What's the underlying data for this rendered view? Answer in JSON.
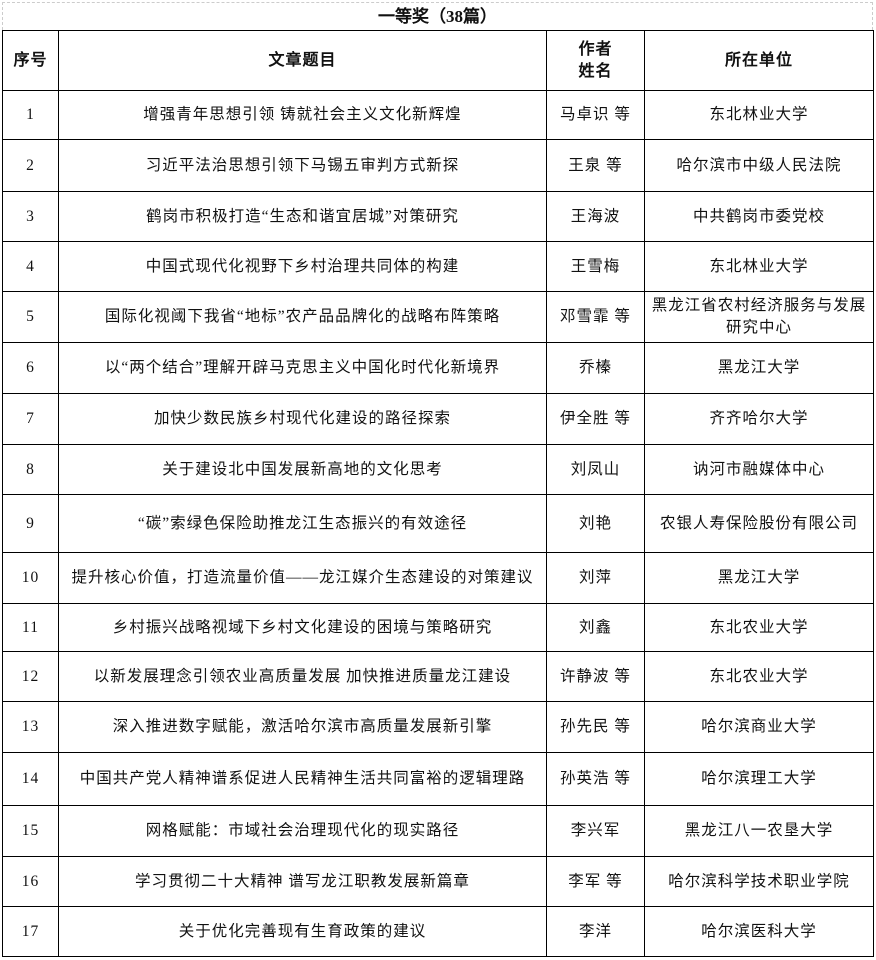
{
  "title": "一等奖（38篇）",
  "headers": {
    "index": "序号",
    "title": "文章题目",
    "author_line1": "作者",
    "author_line2": "姓名",
    "unit": "所在单位"
  },
  "rows": [
    {
      "no": "1",
      "title": "增强青年思想引领 铸就社会主义文化新辉煌",
      "author": "马卓识 等",
      "unit": "东北林业大学"
    },
    {
      "no": "2",
      "title": "习近平法治思想引领下马锡五审判方式新探",
      "author": "王泉 等",
      "unit": "哈尔滨市中级人民法院"
    },
    {
      "no": "3",
      "title": "鹤岗市积极打造“生态和谐宜居城”对策研究",
      "author": "王海波",
      "unit": "中共鹤岗市委党校"
    },
    {
      "no": "4",
      "title": "中国式现代化视野下乡村治理共同体的构建",
      "author": "王雪梅",
      "unit": "东北林业大学"
    },
    {
      "no": "5",
      "title": "国际化视阈下我省“地标”农产品品牌化的战略布阵策略",
      "author": "邓雪霏 等",
      "unit": "黑龙江省农村经济服务与发展研究中心"
    },
    {
      "no": "6",
      "title": "以“两个结合”理解开辟马克思主义中国化时代化新境界",
      "author": "乔榛",
      "unit": "黑龙江大学"
    },
    {
      "no": "7",
      "title": "加快少数民族乡村现代化建设的路径探索",
      "author": "伊全胜 等",
      "unit": "齐齐哈尔大学"
    },
    {
      "no": "8",
      "title": "关于建设北中国发展新高地的文化思考",
      "author": "刘凤山",
      "unit": "讷河市融媒体中心"
    },
    {
      "no": "9",
      "title": "“碳”索绿色保险助推龙江生态振兴的有效途径",
      "author": "刘艳",
      "unit": "农银人寿保险股份有限公司"
    },
    {
      "no": "10",
      "title": "提升核心价值，打造流量价值——龙江媒介生态建设的对策建议",
      "author": "刘萍",
      "unit": "黑龙江大学"
    },
    {
      "no": "11",
      "title": "乡村振兴战略视域下乡村文化建设的困境与策略研究",
      "author": "刘鑫",
      "unit": "东北农业大学"
    },
    {
      "no": "12",
      "title": "以新发展理念引领农业高质量发展 加快推进质量龙江建设",
      "author": "许静波 等",
      "unit": "东北农业大学"
    },
    {
      "no": "13",
      "title": "深入推进数字赋能，激活哈尔滨市高质量发展新引擎",
      "author": "孙先民 等",
      "unit": "哈尔滨商业大学"
    },
    {
      "no": "14",
      "title": "中国共产党人精神谱系促进人民精神生活共同富裕的逻辑理路",
      "author": "孙英浩 等",
      "unit": "哈尔滨理工大学"
    },
    {
      "no": "15",
      "title": "网格赋能：市域社会治理现代化的现实路径",
      "author": "李兴军",
      "unit": "黑龙江八一农垦大学"
    },
    {
      "no": "16",
      "title": "学习贯彻二十大精神  谱写龙江职教发展新篇章",
      "author": "李军 等",
      "unit": "哈尔滨科学技术职业学院"
    },
    {
      "no": "17",
      "title": "关于优化完善现有生育政策的建议",
      "author": "李洋",
      "unit": "哈尔滨医科大学"
    }
  ]
}
